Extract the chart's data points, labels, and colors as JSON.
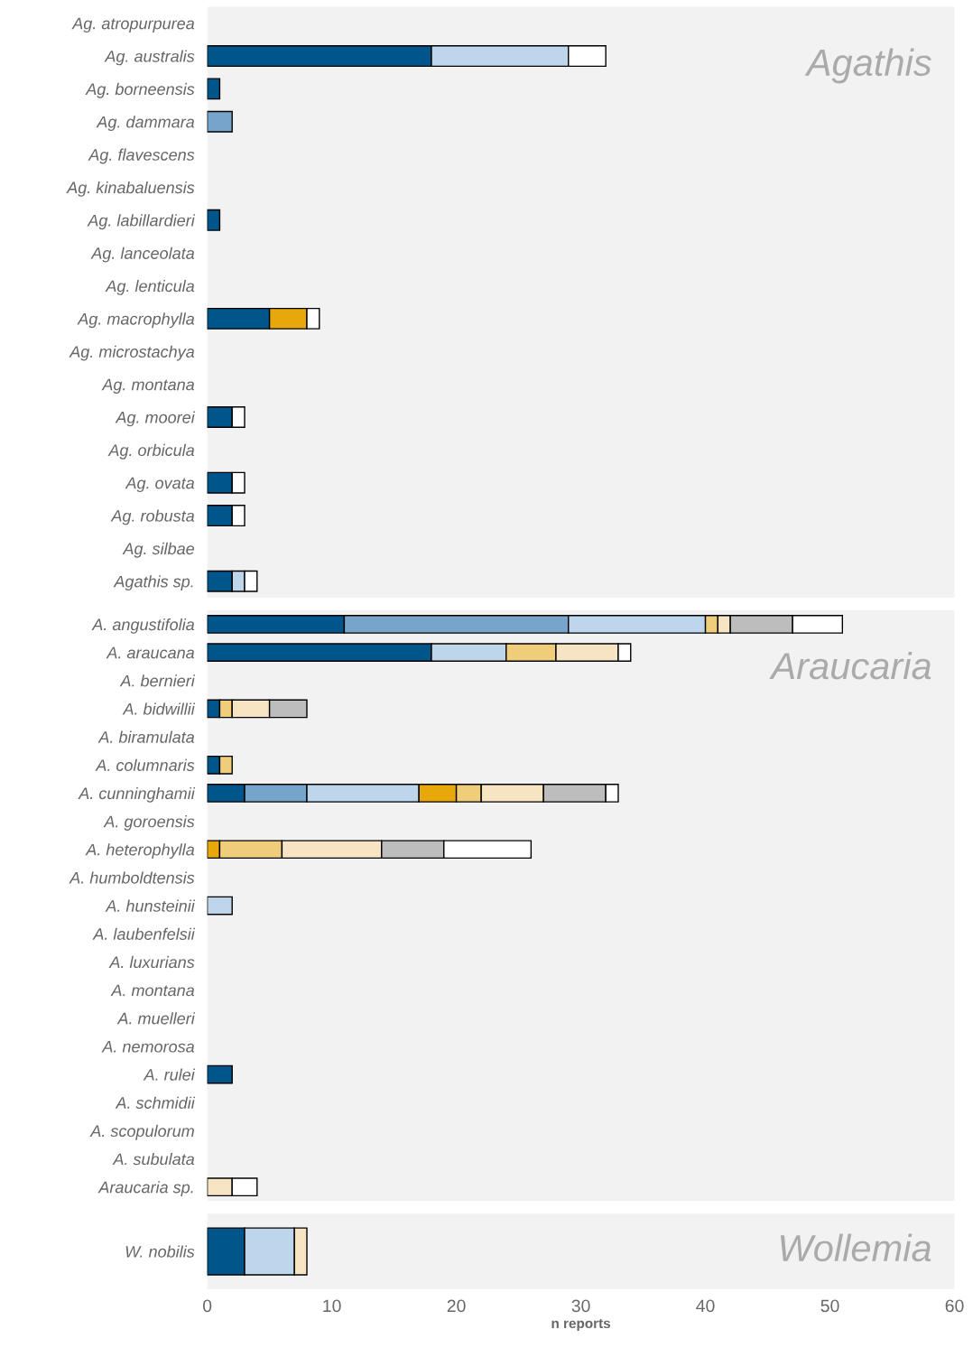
{
  "chart_data": [
    {
      "type": "bar",
      "orientation": "horizontal",
      "stacked": true,
      "annotations": [
        "Agathis"
      ],
      "xlim": [
        0,
        60
      ],
      "tick_labels": "y",
      "grid": false,
      "legend": false,
      "categories": [
        "Ag. atropurpurea",
        "Ag. australis",
        "Ag. borneensis",
        "Ag. dammara",
        "Ag. flavescens",
        "Ag. kinabaluensis",
        "Ag. labillardieri",
        "Ag. lanceolata",
        "Ag. lenticula",
        "Ag. macrophylla",
        "Ag. microstachya",
        "Ag. montana",
        "Ag. moorei",
        "Ag. orbicula",
        "Ag. ovata",
        "Ag. robusta",
        "Ag. silbae",
        "Agathis sp."
      ],
      "series": [
        {
          "color": "#00558a",
          "values": [
            0,
            18,
            1,
            0,
            0,
            0,
            1,
            0,
            0,
            5,
            0,
            0,
            2,
            0,
            2,
            2,
            0,
            2
          ]
        },
        {
          "color": "#77a4cb",
          "values": [
            0,
            0,
            0,
            2,
            0,
            0,
            0,
            0,
            0,
            0,
            0,
            0,
            0,
            0,
            0,
            0,
            0,
            0
          ]
        },
        {
          "color": "#bdd6ec",
          "values": [
            0,
            11,
            0,
            0,
            0,
            0,
            0,
            0,
            0,
            0,
            0,
            0,
            0,
            0,
            0,
            0,
            0,
            1
          ]
        },
        {
          "color": "#e8a80c",
          "values": [
            0,
            0,
            0,
            0,
            0,
            0,
            0,
            0,
            0,
            3,
            0,
            0,
            0,
            0,
            0,
            0,
            0,
            0
          ]
        },
        {
          "color": "#ffffff",
          "values": [
            0,
            3,
            0,
            0,
            0,
            0,
            0,
            0,
            0,
            1,
            0,
            0,
            1,
            0,
            1,
            1,
            0,
            1
          ]
        }
      ]
    },
    {
      "type": "bar",
      "orientation": "horizontal",
      "stacked": true,
      "annotations": [
        "Araucaria"
      ],
      "xlim": [
        0,
        60
      ],
      "tick_labels": "y",
      "grid": false,
      "legend": false,
      "categories": [
        "A. angustifolia",
        "A. araucana",
        "A. bernieri",
        "A. bidwillii",
        "A. biramulata",
        "A. columnaris",
        "A. cunninghamii",
        "A. goroensis",
        "A. heterophylla",
        "A. humboldtensis",
        "A. hunsteinii",
        "A. laubenfelsii",
        "A. luxurians",
        "A. montana",
        "A. muelleri",
        "A. nemorosa",
        "A. rulei",
        "A. schmidii",
        "A. scopulorum",
        "A. subulata",
        "Araucaria sp."
      ],
      "series": [
        {
          "color": "#00558a",
          "values": [
            11,
            18,
            0,
            1,
            0,
            1,
            3,
            0,
            0,
            0,
            0,
            0,
            0,
            0,
            0,
            0,
            2,
            0,
            0,
            0,
            0
          ]
        },
        {
          "color": "#77a4cb",
          "values": [
            18,
            0,
            0,
            0,
            0,
            0,
            5,
            0,
            0,
            0,
            0,
            0,
            0,
            0,
            0,
            0,
            0,
            0,
            0,
            0,
            0
          ]
        },
        {
          "color": "#bdd6ec",
          "values": [
            11,
            6,
            0,
            0,
            0,
            0,
            9,
            0,
            0,
            0,
            2,
            0,
            0,
            0,
            0,
            0,
            0,
            0,
            0,
            0,
            0
          ]
        },
        {
          "color": "#e8a80c",
          "values": [
            0,
            0,
            0,
            0,
            0,
            0,
            3,
            0,
            1,
            0,
            0,
            0,
            0,
            0,
            0,
            0,
            0,
            0,
            0,
            0,
            0
          ]
        },
        {
          "color": "#f0cd7b",
          "values": [
            1,
            4,
            0,
            1,
            0,
            1,
            2,
            0,
            5,
            0,
            0,
            0,
            0,
            0,
            0,
            0,
            0,
            0,
            0,
            0,
            0
          ]
        },
        {
          "color": "#f6e4c3",
          "values": [
            1,
            5,
            0,
            3,
            0,
            0,
            5,
            0,
            8,
            0,
            0,
            0,
            0,
            0,
            0,
            0,
            0,
            0,
            0,
            0,
            2
          ]
        },
        {
          "color": "#bdbdbd",
          "values": [
            5,
            0,
            0,
            3,
            0,
            0,
            5,
            0,
            5,
            0,
            0,
            0,
            0,
            0,
            0,
            0,
            0,
            0,
            0,
            0,
            0
          ]
        },
        {
          "color": "#ffffff",
          "values": [
            4,
            1,
            0,
            0,
            0,
            0,
            1,
            0,
            7,
            0,
            0,
            0,
            0,
            0,
            0,
            0,
            0,
            0,
            0,
            0,
            2
          ]
        }
      ]
    },
    {
      "type": "bar",
      "orientation": "horizontal",
      "stacked": true,
      "annotations": [
        "Wollemia"
      ],
      "xlim": [
        0,
        60
      ],
      "xticks": [
        0,
        10,
        20,
        30,
        40,
        50,
        60
      ],
      "xlabel": "n reports",
      "grid": false,
      "legend": false,
      "categories": [
        "W. nobilis"
      ],
      "series": [
        {
          "color": "#00558a",
          "values": [
            3
          ]
        },
        {
          "color": "#bdd6ec",
          "values": [
            4
          ]
        },
        {
          "color": "#f6e4c3",
          "values": [
            1
          ]
        }
      ]
    }
  ]
}
